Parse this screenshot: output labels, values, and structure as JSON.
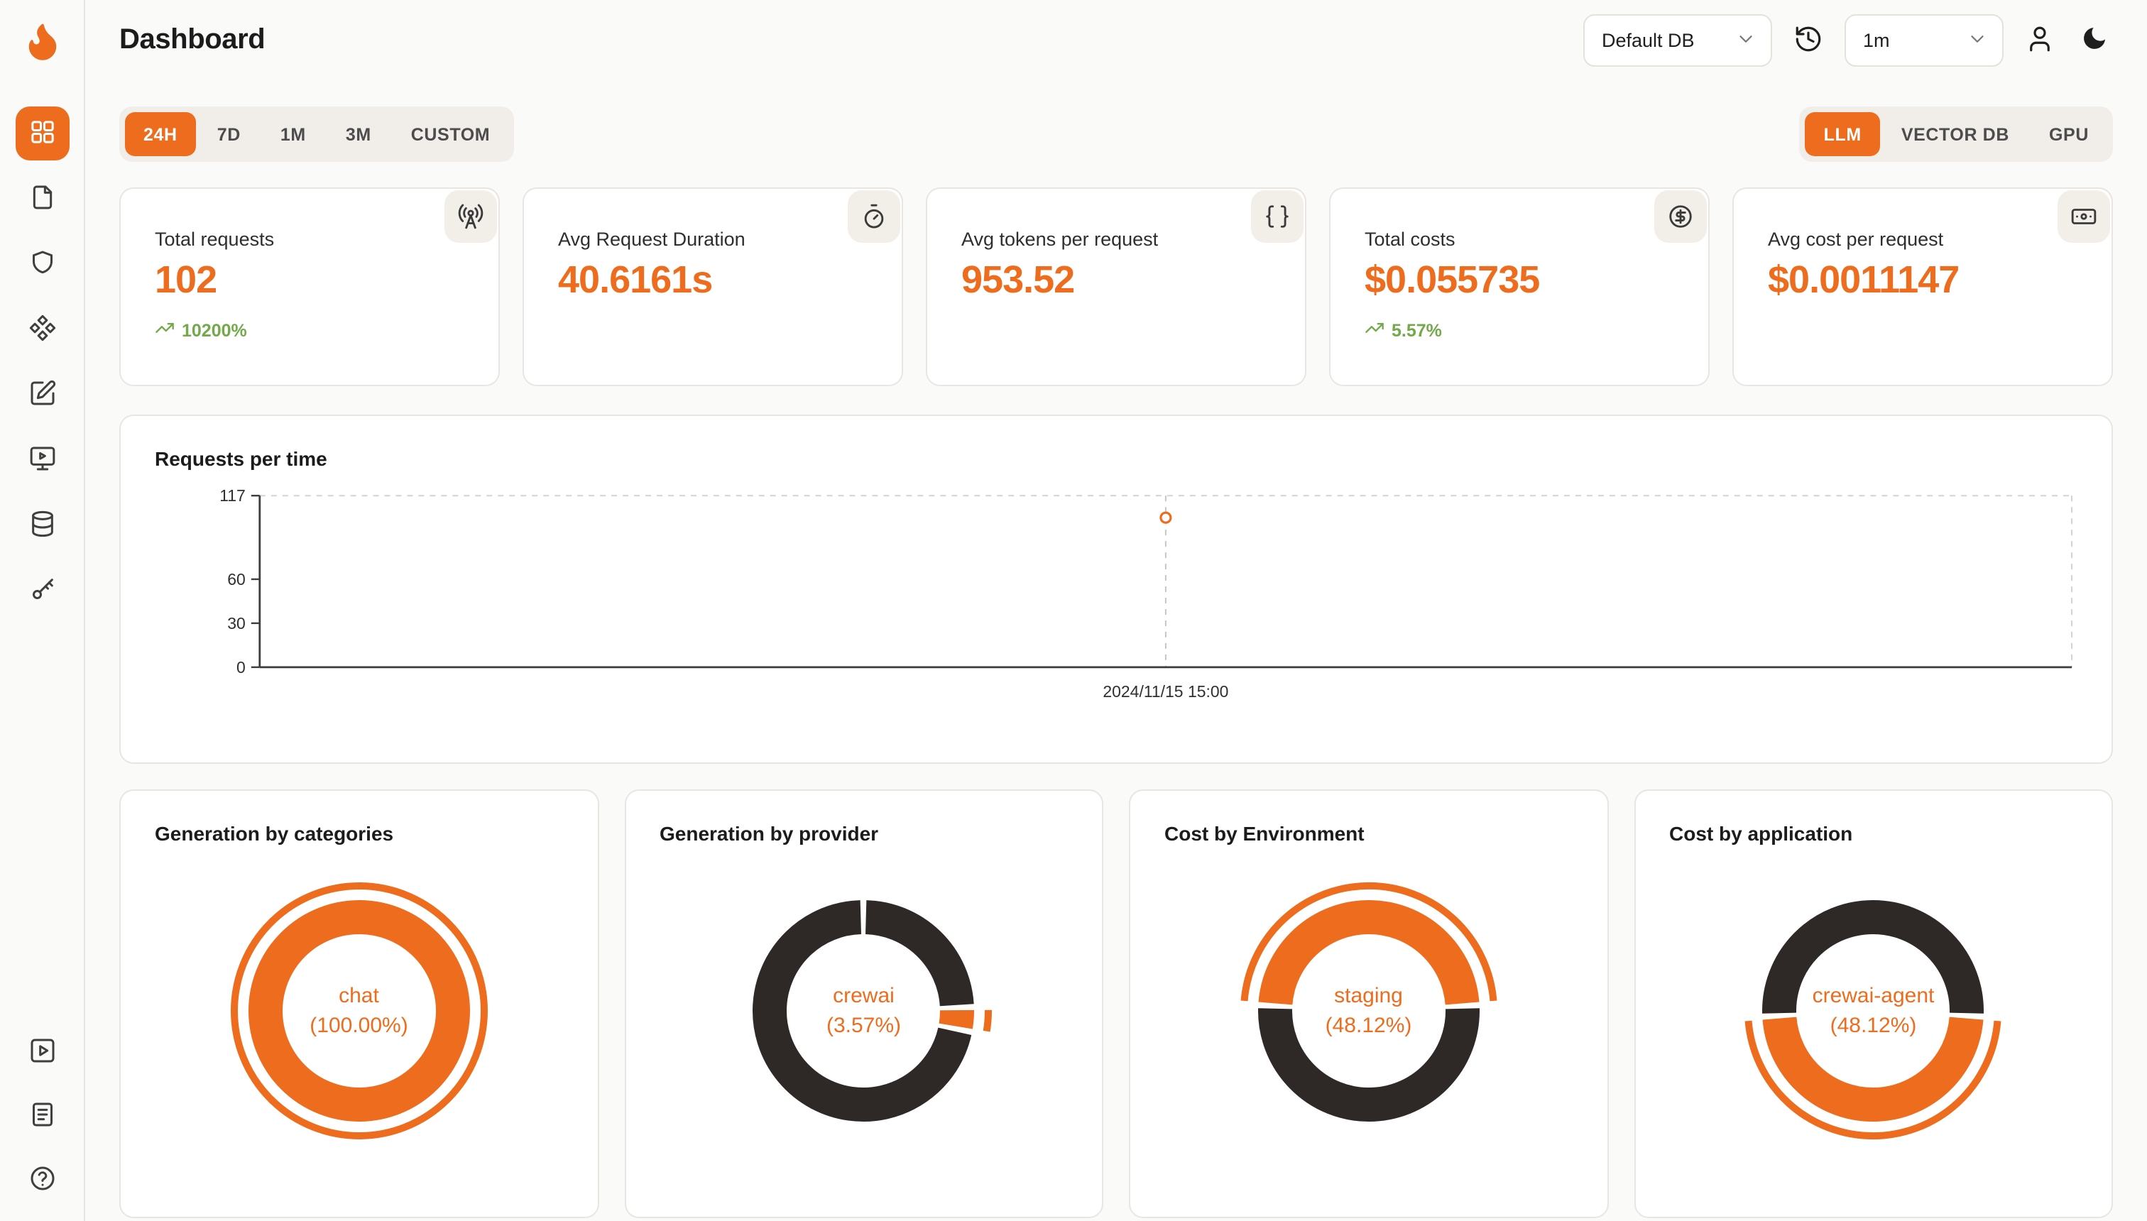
{
  "theme": {
    "accent": "#ED6C1E",
    "dark_slice": "#2E2926",
    "green": "#72A94A",
    "bg": "#FAFAF8",
    "card_border": "#E9E6E1"
  },
  "header": {
    "title": "Dashboard",
    "db_select": {
      "value": "Default DB"
    },
    "interval_select": {
      "value": "1m"
    },
    "icons": [
      "history-icon",
      "user-icon",
      "moon-icon"
    ]
  },
  "sidebar": {
    "logo_icon": "flame-logo",
    "items": [
      {
        "icon": "dashboard-grid-icon",
        "active": true
      },
      {
        "icon": "requests-file-icon",
        "active": false
      },
      {
        "icon": "shield-icon",
        "active": false
      },
      {
        "icon": "integrations-icon",
        "active": false
      },
      {
        "icon": "prompt-edit-icon",
        "active": false
      },
      {
        "icon": "playground-monitor-icon",
        "active": false
      },
      {
        "icon": "database-icon",
        "active": false
      },
      {
        "icon": "api-key-icon",
        "active": false
      }
    ],
    "bottom_items": [
      {
        "icon": "getting-started-play-icon"
      },
      {
        "icon": "documentation-icon"
      },
      {
        "icon": "help-circle-icon"
      }
    ]
  },
  "time_tabs": {
    "items": [
      "24H",
      "7D",
      "1M",
      "3M",
      "CUSTOM"
    ],
    "active": "24H"
  },
  "source_tabs": {
    "items": [
      "LLM",
      "VECTOR DB",
      "GPU"
    ],
    "active": "LLM"
  },
  "stat_cards": [
    {
      "label": "Total requests",
      "value": "102",
      "trend": "10200%",
      "icon": "antenna-icon"
    },
    {
      "label": "Avg Request Duration",
      "value": "40.6161s",
      "icon": "timer-icon"
    },
    {
      "label": "Avg tokens per request",
      "value": "953.52",
      "icon": "braces-icon"
    },
    {
      "label": "Total costs",
      "value": "$0.055735",
      "trend": "5.57%",
      "icon": "dollar-circle-icon"
    },
    {
      "label": "Avg cost per request",
      "value": "$0.0011147",
      "icon": "banknote-icon"
    }
  ],
  "chart_data": [
    {
      "id": "requests-per-time",
      "type": "line",
      "title": "Requests per time",
      "points": [
        {
          "x": "2024/11/15 15:00",
          "y": 102
        }
      ],
      "ylim": [
        0,
        117
      ],
      "yticks": [
        0,
        30,
        60,
        117
      ],
      "x_position_fraction": 0.5,
      "grid": "dashed-frame",
      "legend": "none",
      "point_style": "hollow-circle-accent"
    },
    {
      "id": "generation-by-categories",
      "type": "pie",
      "title": "Generation by categories",
      "center_label": "chat",
      "center_value": "(100.00%)",
      "slices": [
        {
          "label": "chat",
          "percent": 100,
          "color": "#ED6C1E",
          "start_deg": 0,
          "sweep_deg": 360,
          "highlight": true
        }
      ]
    },
    {
      "id": "generation-by-provider",
      "type": "pie",
      "title": "Generation by provider",
      "center_label": "crewai",
      "center_value": "(3.57%)",
      "slices": [
        {
          "label": "other",
          "percent": 24.4,
          "color": "#2E2926",
          "start_deg": 0,
          "sweep_deg": 88,
          "highlight": false
        },
        {
          "label": "crewai",
          "percent": 3.57,
          "color": "#ED6C1E",
          "start_deg": 88,
          "sweep_deg": 13,
          "highlight": true
        },
        {
          "label": "other",
          "percent": 72.03,
          "color": "#2E2926",
          "start_deg": 101,
          "sweep_deg": 259,
          "highlight": false
        }
      ]
    },
    {
      "id": "cost-by-environment",
      "type": "pie",
      "title": "Cost by Environment",
      "center_label": "staging",
      "center_value": "(48.12%)",
      "slices": [
        {
          "label": "staging",
          "percent": 48.12,
          "color": "#ED6C1E",
          "start_deg": 273,
          "sweep_deg": 174,
          "highlight": true
        },
        {
          "label": "other",
          "percent": 51.88,
          "color": "#2E2926",
          "start_deg": 87,
          "sweep_deg": 186,
          "highlight": false
        }
      ]
    },
    {
      "id": "cost-by-application",
      "type": "pie",
      "title": "Cost by application",
      "center_label": "crewai-agent",
      "center_value": "(48.12%)",
      "slices": [
        {
          "label": "crewai-agent",
          "percent": 48.12,
          "color": "#ED6C1E",
          "start_deg": 93,
          "sweep_deg": 174,
          "highlight": true
        },
        {
          "label": "other",
          "percent": 51.88,
          "color": "#2E2926",
          "start_deg": 267,
          "sweep_deg": 186,
          "highlight": false
        }
      ]
    }
  ]
}
